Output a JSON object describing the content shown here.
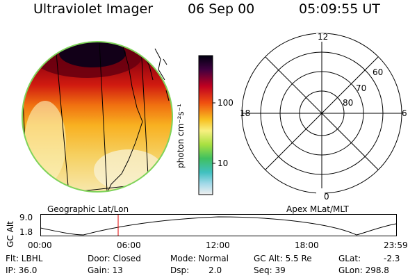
{
  "header": {
    "instrument": "Ultraviolet Imager",
    "date": "06 Sep 00",
    "time": "05:09:55 UT"
  },
  "colorbar": {
    "unit_label": "photon cm⁻²s⁻¹",
    "ticks": [
      "100",
      "10"
    ]
  },
  "polar_plot": {
    "mlt_labels": {
      "top": "12",
      "left": "18",
      "right": "6",
      "bottom": "0"
    },
    "lat_labels": [
      "60",
      "70",
      "80"
    ]
  },
  "timeline": {
    "left_label": "Geographic Lat/Lon",
    "right_label": "Apex MLat/MLT",
    "axis_label": "GC Alt",
    "y_ticks": [
      "9.0",
      "1.8"
    ],
    "x_ticks": [
      "00:00",
      "06:00",
      "12:00",
      "18:00",
      "23:59"
    ],
    "marker_color": "#e00000"
  },
  "info": {
    "flt": "Flt: LBHL",
    "ip": "IP: 36.0",
    "door": "Door: Closed",
    "gain": "Gain: 13",
    "mode": "Mode: Normal",
    "dsp_label": "Dsp:",
    "dsp_value": "2.0",
    "gcalt": "GC Alt: 5.5 Re",
    "seq": "Seq: 39",
    "glat_label": "GLat:",
    "glat_value": "-2.3",
    "glon": "GLon: 298.8"
  }
}
